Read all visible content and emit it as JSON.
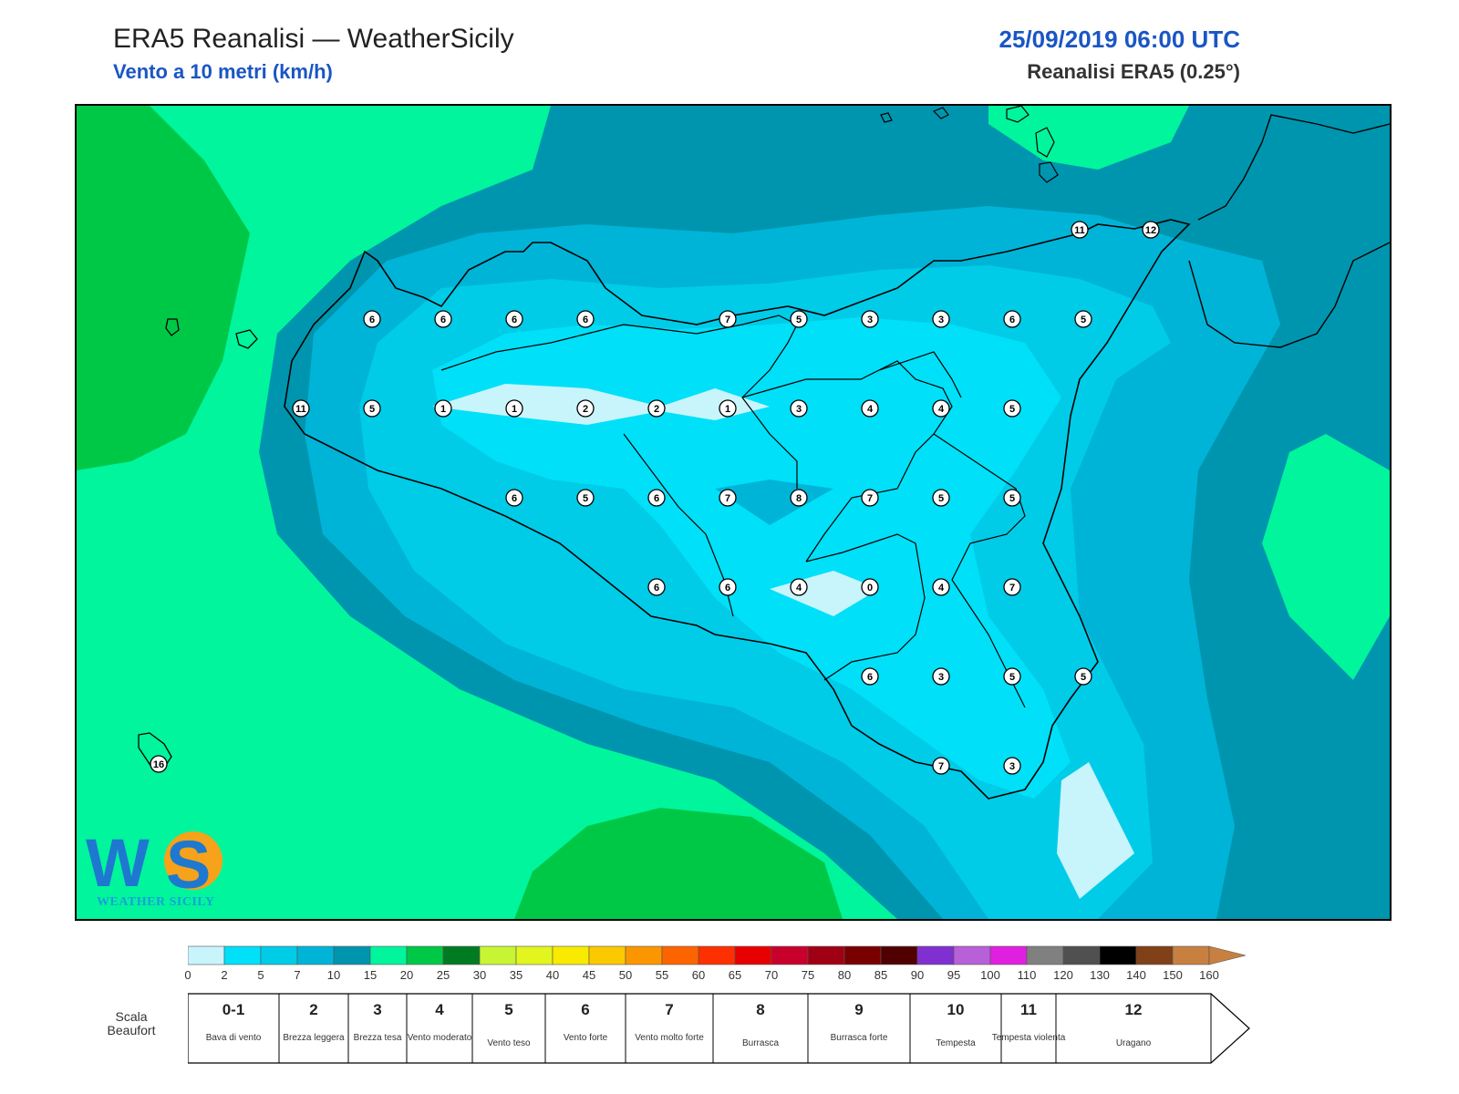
{
  "header": {
    "title": "ERA5 Reanalisi — WeatherSicily",
    "subtitle": "Vento a 10 metri (km/h)",
    "datetime": "25/09/2019 06:00 UTC",
    "model": "Reanalisi ERA5 (0.25°)"
  },
  "logo": {
    "text": "WEATHER SICILY",
    "mark": "WS"
  },
  "colors": {
    "bins": [
      "#c8f4fc",
      "#00e0f8",
      "#00cce8",
      "#00b4d8",
      "#0095ae",
      "#00f59c",
      "#00c847",
      "#007b22",
      "#c7f534",
      "#e2f51e",
      "#f8ea00",
      "#fcc800",
      "#fc9600",
      "#fc6400",
      "#fc3000",
      "#e80000",
      "#c8002c",
      "#a00014",
      "#7a0000",
      "#500000",
      "#8030d0",
      "#b860d8",
      "#e020e0",
      "#808080",
      "#505050",
      "#000000",
      "#804018",
      "#c88040"
    ]
  },
  "wind_speed_scale": {
    "ticks": [
      "0",
      "2",
      "5",
      "7",
      "10",
      "15",
      "20",
      "25",
      "30",
      "35",
      "40",
      "45",
      "50",
      "55",
      "60",
      "65",
      "70",
      "75",
      "80",
      "85",
      "90",
      "95",
      "100",
      "110",
      "120",
      "130",
      "140",
      "150",
      "160"
    ]
  },
  "beaufort": {
    "label": "Scala Beaufort",
    "classes": [
      {
        "num": "0-1",
        "desc": "Bava di vento"
      },
      {
        "num": "2",
        "desc": "Brezza leggera"
      },
      {
        "num": "3",
        "desc": "Brezza tesa"
      },
      {
        "num": "4",
        "desc": "Vento moderato"
      },
      {
        "num": "5",
        "desc": "Vento teso"
      },
      {
        "num": "6",
        "desc": "Vento forte"
      },
      {
        "num": "7",
        "desc": "Vento molto forte"
      },
      {
        "num": "8",
        "desc": "Burrasca"
      },
      {
        "num": "9",
        "desc": "Burrasca forte"
      },
      {
        "num": "10",
        "desc": "Tempesta"
      },
      {
        "num": "11",
        "desc": "Tempesta violenta"
      },
      {
        "num": "12",
        "desc": "Uragano"
      }
    ]
  },
  "wind_values": [
    {
      "row": 0,
      "col": 4,
      "v": "6"
    },
    {
      "row": 0,
      "col": 5,
      "v": "6"
    },
    {
      "row": 0,
      "col": 6,
      "v": "6"
    },
    {
      "row": 0,
      "col": 7,
      "v": "6"
    },
    {
      "row": 0,
      "col": 9,
      "v": "7"
    },
    {
      "row": 0,
      "col": 10,
      "v": "5"
    },
    {
      "row": 0,
      "col": 11,
      "v": "3"
    },
    {
      "row": 0,
      "col": 12,
      "v": "3"
    },
    {
      "row": 0,
      "col": 13,
      "v": "6"
    },
    {
      "row": 0,
      "col": 14,
      "v": "5"
    },
    {
      "row": 1,
      "col": 3,
      "v": "11"
    },
    {
      "row": 1,
      "col": 4,
      "v": "5"
    },
    {
      "row": 1,
      "col": 5,
      "v": "1"
    },
    {
      "row": 1,
      "col": 6,
      "v": "1"
    },
    {
      "row": 1,
      "col": 7,
      "v": "2"
    },
    {
      "row": 1,
      "col": 8,
      "v": "2"
    },
    {
      "row": 1,
      "col": 9,
      "v": "1"
    },
    {
      "row": 1,
      "col": 10,
      "v": "3"
    },
    {
      "row": 1,
      "col": 11,
      "v": "4"
    },
    {
      "row": 1,
      "col": 12,
      "v": "4"
    },
    {
      "row": 1,
      "col": 13,
      "v": "5"
    },
    {
      "row": 2,
      "col": 6,
      "v": "6"
    },
    {
      "row": 2,
      "col": 7,
      "v": "5"
    },
    {
      "row": 2,
      "col": 8,
      "v": "6"
    },
    {
      "row": 2,
      "col": 9,
      "v": "7"
    },
    {
      "row": 2,
      "col": 10,
      "v": "8"
    },
    {
      "row": 2,
      "col": 11,
      "v": "7"
    },
    {
      "row": 2,
      "col": 12,
      "v": "5"
    },
    {
      "row": 2,
      "col": 13,
      "v": "5"
    },
    {
      "row": 3,
      "col": 8,
      "v": "6"
    },
    {
      "row": 3,
      "col": 9,
      "v": "6"
    },
    {
      "row": 3,
      "col": 10,
      "v": "4"
    },
    {
      "row": 3,
      "col": 11,
      "v": "0"
    },
    {
      "row": 3,
      "col": 12,
      "v": "4"
    },
    {
      "row": 3,
      "col": 13,
      "v": "7"
    },
    {
      "row": 4,
      "col": 11,
      "v": "6"
    },
    {
      "row": 4,
      "col": 12,
      "v": "3"
    },
    {
      "row": 4,
      "col": 13,
      "v": "5"
    },
    {
      "row": 4,
      "col": 14,
      "v": "5"
    },
    {
      "row": 5,
      "col": 12,
      "v": "7"
    },
    {
      "row": 5,
      "col": 13,
      "v": "3"
    },
    {
      "row": -1,
      "col": 15,
      "v": "11"
    },
    {
      "row": -1,
      "col": 16,
      "v": "12"
    },
    {
      "row": 6,
      "col": 1,
      "v": "16"
    }
  ]
}
